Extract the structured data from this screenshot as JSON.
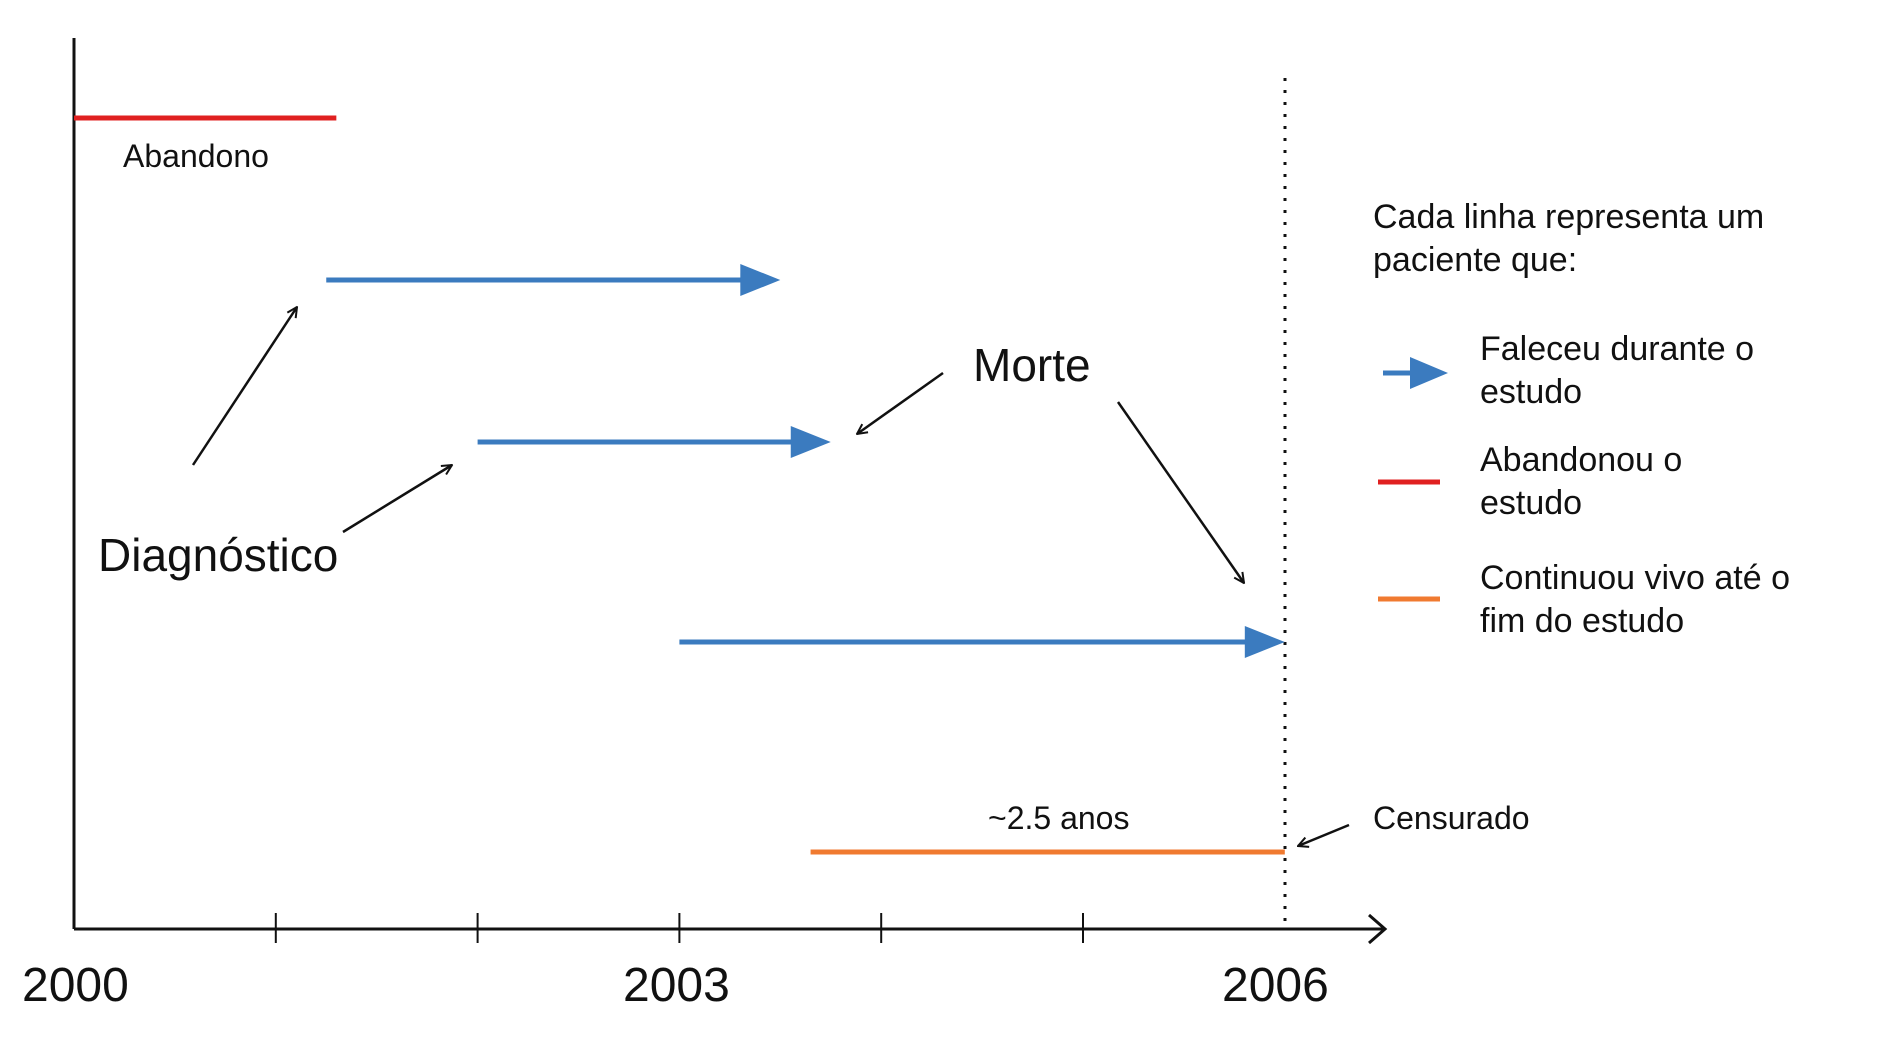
{
  "axis": {
    "x_tick_labels": [
      "2000",
      "2003",
      "2006"
    ],
    "x_range": [
      2000,
      2006.5
    ]
  },
  "patients": [
    {
      "start": 2000.0,
      "end": 2001.3,
      "outcome": "abandoned",
      "label": "Abandono"
    },
    {
      "start": 2001.25,
      "end": 2003.5,
      "outcome": "died"
    },
    {
      "start": 2002.0,
      "end": 2003.75,
      "outcome": "died"
    },
    {
      "start": 2003.0,
      "end": 2006.0,
      "outcome": "died"
    },
    {
      "start": 2003.65,
      "end": 2006.0,
      "outcome": "censored",
      "label": "~2.5 anos"
    }
  ],
  "annotations": {
    "diagnosis": "Diagnóstico",
    "death": "Morte",
    "censored": "Censurado",
    "study_end": 2006.0
  },
  "legend": {
    "title": "Cada linha representa um paciente que:",
    "items": [
      {
        "key": "died",
        "label": "Faleceu durante o estudo",
        "color": "#3b7bbf",
        "icon": "arrow"
      },
      {
        "key": "abandoned",
        "label": "Abandonou o estudo",
        "color": "#e02020",
        "icon": "line"
      },
      {
        "key": "censored",
        "label": "Continuou vivo até o fim do estudo",
        "color": "#f07a30",
        "icon": "line"
      }
    ]
  },
  "colors": {
    "died": "#3b7bbf",
    "abandoned": "#e02020",
    "censored": "#f07a30",
    "axis": "#111111"
  }
}
